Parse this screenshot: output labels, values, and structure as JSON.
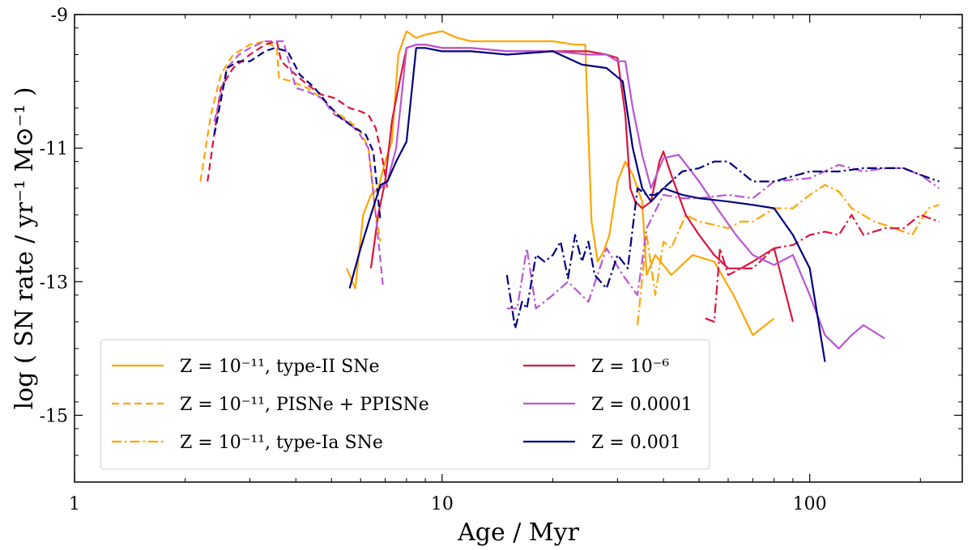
{
  "chart_data": {
    "type": "line",
    "xscale": "log",
    "xlim": [
      1,
      260
    ],
    "ylim": [
      -16,
      -9
    ],
    "xlabel": "Age / Myr",
    "ylabel": "log ( SN rate / yr⁻¹ M⊙⁻¹ )",
    "xticks": [
      {
        "value": 1,
        "label": "1"
      },
      {
        "value": 10,
        "label": "10"
      },
      {
        "value": 100,
        "label": "100"
      }
    ],
    "yticks": [
      {
        "value": -9,
        "label": "-9"
      },
      {
        "value": -11,
        "label": "-11"
      },
      {
        "value": -13,
        "label": "-13"
      },
      {
        "value": -15,
        "label": "-15"
      }
    ],
    "legend": {
      "placement": "lower-left",
      "entries": [
        {
          "label": "Z = 10⁻¹¹, type-II SNe",
          "color": "#FFA500",
          "dash": "solid"
        },
        {
          "label": "Z = 10⁻¹¹, PISNe + PPISNe",
          "color": "#FFA500",
          "dash": "dashed"
        },
        {
          "label": "Z = 10⁻¹¹, type-Ia SNe",
          "color": "#FFA500",
          "dash": "dashdot"
        },
        {
          "label": "Z = 10⁻⁶",
          "color": "#DC143C",
          "dash": "solid"
        },
        {
          "label": "Z = 0.0001",
          "color": "#BA55D3",
          "dash": "solid"
        },
        {
          "label": "Z = 0.001",
          "color": "#000080",
          "dash": "solid"
        }
      ]
    },
    "series": [
      {
        "name": "Z=1e-11 PISNe+PPISNe",
        "color": "#FFA500",
        "dash": "dashed",
        "x": [
          2.2,
          2.35,
          2.5,
          2.7,
          3.0,
          3.3,
          3.55,
          3.6,
          3.9,
          4.3,
          4.7,
          5.1,
          5.6,
          6.0,
          6.3,
          6.6,
          6.8
        ],
        "y": [
          -11.5,
          -10.5,
          -9.9,
          -9.6,
          -9.45,
          -9.4,
          -9.5,
          -9.95,
          -10.0,
          -10.1,
          -10.25,
          -10.45,
          -10.6,
          -10.75,
          -11.0,
          -12.0,
          -12.4
        ]
      },
      {
        "name": "Z=1e-11 type-II",
        "color": "#FFA500",
        "dash": "solid",
        "x": [
          5.5,
          5.8,
          6.1,
          6.4,
          6.7,
          7.0,
          7.3,
          7.6,
          8.0,
          8.5,
          9.0,
          10.0,
          11.0,
          12.0,
          15.0,
          20.0,
          23.0,
          24.5,
          25.5,
          26.5,
          27.5,
          28.5,
          30.0,
          31.5,
          33.0,
          35.0,
          36.0,
          38.0,
          42.0,
          48.0,
          55.0,
          62.0,
          70.0,
          80.0
        ],
        "y": [
          -12.8,
          -13.1,
          -12.0,
          -11.7,
          -11.6,
          -11.2,
          -10.9,
          -9.6,
          -9.25,
          -9.35,
          -9.3,
          -9.25,
          -9.35,
          -9.4,
          -9.4,
          -9.4,
          -9.45,
          -9.45,
          -12.1,
          -12.7,
          -12.55,
          -12.3,
          -11.5,
          -11.2,
          -11.4,
          -11.8,
          -12.9,
          -12.6,
          -12.9,
          -12.6,
          -12.7,
          -13.2,
          -13.8,
          -13.55
        ]
      },
      {
        "name": "Z=1e-11 type-Ia",
        "color": "#FFA500",
        "dash": "dashdot",
        "x": [
          34.0,
          36.0,
          38.0,
          40.0,
          42.0,
          46.0,
          50.0,
          55.0,
          60.0,
          65.0,
          70.0,
          80.0,
          90.0,
          100.0,
          110.0,
          120.0,
          130.0,
          150.0,
          170.0,
          190.0,
          210.0,
          225.0
        ],
        "y": [
          -13.65,
          -12.3,
          -13.2,
          -12.4,
          -12.5,
          -12.0,
          -12.1,
          -12.15,
          -12.2,
          -12.1,
          -12.1,
          -11.9,
          -11.9,
          -11.7,
          -11.55,
          -11.65,
          -11.9,
          -12.1,
          -12.2,
          -12.3,
          -11.9,
          -11.85
        ]
      },
      {
        "name": "Z=1e-6 PISNe",
        "color": "#DC143C",
        "dash": "dashed",
        "x": [
          2.3,
          2.5,
          2.7,
          3.0,
          3.3,
          3.55,
          3.65,
          3.9,
          4.3,
          4.7,
          5.1,
          5.6,
          6.0,
          6.3,
          6.6,
          6.9,
          7.1
        ],
        "y": [
          -11.5,
          -10.1,
          -9.8,
          -9.6,
          -9.45,
          -9.4,
          -9.7,
          -9.85,
          -10.05,
          -10.2,
          -10.25,
          -10.4,
          -10.45,
          -10.5,
          -10.7,
          -11.2,
          -11.6
        ]
      },
      {
        "name": "Z=1e-6 type-II",
        "color": "#DC143C",
        "dash": "solid",
        "x": [
          6.4,
          6.7,
          7.0,
          7.3,
          7.6,
          8.0,
          8.5,
          9.0,
          10.0,
          12.0,
          15.0,
          20.0,
          25.0,
          28.0,
          30.0,
          31.5,
          32.5,
          33.5,
          35.0,
          37.0,
          39.0,
          40.0,
          42.0,
          46.0,
          50.0,
          55.0,
          60.0,
          65.0,
          70.0,
          80.0,
          90.0
        ],
        "y": [
          -12.8,
          -12.0,
          -11.5,
          -10.6,
          -10.1,
          -9.5,
          -9.45,
          -9.45,
          -9.5,
          -9.5,
          -9.55,
          -9.55,
          -9.55,
          -9.6,
          -9.65,
          -10.5,
          -11.6,
          -11.8,
          -11.9,
          -11.8,
          -11.2,
          -11.05,
          -11.4,
          -12.0,
          -12.3,
          -12.6,
          -12.8,
          -12.8,
          -12.7,
          -12.5,
          -13.6
        ]
      },
      {
        "name": "Z=1e-6 type-Ia",
        "color": "#DC143C",
        "dash": "dashdot",
        "x": [
          52.0,
          55.0,
          57.0,
          60.0,
          65.0,
          70.0,
          80.0,
          90.0,
          100.0,
          110.0,
          120.0,
          130.0,
          140.0,
          160.0,
          180.0,
          200.0,
          225.0
        ],
        "y": [
          -13.55,
          -13.6,
          -12.5,
          -12.9,
          -12.8,
          -12.8,
          -12.5,
          -12.45,
          -12.3,
          -12.25,
          -12.3,
          -12.0,
          -12.3,
          -12.2,
          -12.2,
          -12.0,
          -12.1
        ]
      },
      {
        "name": "Z=1e-4 PISNe",
        "color": "#BA55D3",
        "dash": "dashed",
        "x": [
          2.4,
          2.6,
          2.8,
          3.0,
          3.3,
          3.5,
          3.7,
          4.0,
          4.3,
          4.7,
          5.1,
          5.5,
          5.9,
          6.3,
          6.6,
          6.9
        ],
        "y": [
          -10.6,
          -9.8,
          -9.6,
          -9.5,
          -9.4,
          -9.4,
          -9.4,
          -10.1,
          -10.15,
          -10.25,
          -10.5,
          -10.6,
          -10.75,
          -11.0,
          -12.0,
          -13.05
        ]
      },
      {
        "name": "Z=1e-4 type-II",
        "color": "#BA55D3",
        "dash": "solid",
        "x": [
          6.8,
          7.1,
          7.5,
          8.0,
          8.5,
          9.0,
          10.0,
          12.0,
          15.0,
          20.0,
          25.0,
          28.0,
          30.0,
          31.5,
          33.0,
          35.0,
          37.0,
          40.0,
          44.0,
          50.0,
          56.0,
          63.0,
          70.0,
          80.0,
          90.0,
          100.0,
          110.0,
          120.0,
          130.0,
          140.0,
          160.0
        ],
        "y": [
          -11.6,
          -11.5,
          -11.0,
          -9.5,
          -9.45,
          -9.45,
          -9.5,
          -9.5,
          -9.55,
          -9.55,
          -9.6,
          -9.6,
          -9.7,
          -9.7,
          -10.4,
          -11.1,
          -11.6,
          -11.15,
          -11.1,
          -11.5,
          -11.9,
          -12.3,
          -12.6,
          -12.75,
          -12.6,
          -13.2,
          -13.8,
          -14.0,
          -13.8,
          -13.65,
          -13.85
        ]
      },
      {
        "name": "Z=1e-4 type-Ia",
        "color": "#BA55D3",
        "dash": "dashdot",
        "x": [
          15.0,
          16.0,
          17.0,
          18.0,
          20.0,
          22.0,
          25.0,
          28.0,
          31.0,
          34.0,
          36.0,
          40.0,
          45.0,
          50.0,
          60.0,
          70.0,
          80.0,
          100.0,
          120.0,
          140.0,
          160.0,
          180.0,
          200.0,
          225.0
        ],
        "y": [
          -13.4,
          -13.4,
          -12.5,
          -13.4,
          -13.2,
          -13.0,
          -13.3,
          -12.5,
          -12.9,
          -13.2,
          -12.2,
          -11.7,
          -11.75,
          -11.75,
          -11.7,
          -11.75,
          -11.5,
          -11.45,
          -11.25,
          -11.35,
          -11.3,
          -11.3,
          -11.4,
          -11.6
        ]
      },
      {
        "name": "Z=1e-3 PISNe",
        "color": "#000080",
        "dash": "dashed",
        "x": [
          2.4,
          2.6,
          2.8,
          3.0,
          3.3,
          3.5,
          3.8,
          4.1,
          4.5,
          4.9,
          5.3,
          5.8,
          6.2,
          6.5,
          6.8
        ],
        "y": [
          -10.8,
          -9.8,
          -9.7,
          -9.7,
          -9.55,
          -9.5,
          -9.55,
          -9.9,
          -10.1,
          -10.35,
          -10.55,
          -10.7,
          -10.8,
          -11.05,
          -12.1
        ]
      },
      {
        "name": "Z=1e-3 type-II",
        "color": "#000080",
        "dash": "solid",
        "x": [
          5.6,
          6.0,
          6.4,
          6.8,
          7.1,
          7.5,
          8.0,
          8.5,
          9.0,
          10.0,
          12.0,
          15.0,
          20.0,
          24.0,
          28.0,
          31.0,
          33.0,
          35.0,
          37.0,
          40.0,
          45.0,
          50.0,
          60.0,
          70.0,
          80.0,
          90.0,
          100.0,
          110.0
        ],
        "y": [
          -13.1,
          -12.5,
          -12.0,
          -11.55,
          -11.5,
          -11.2,
          -10.9,
          -9.5,
          -9.5,
          -9.55,
          -9.55,
          -9.6,
          -9.55,
          -9.75,
          -9.8,
          -10.0,
          -11.0,
          -11.6,
          -11.8,
          -11.6,
          -11.7,
          -11.75,
          -11.8,
          -11.85,
          -11.9,
          -12.3,
          -12.8,
          -14.2
        ]
      },
      {
        "name": "Z=1e-3 type-Ia",
        "color": "#000080",
        "dash": "dashdot",
        "x": [
          15.0,
          15.8,
          16.5,
          17.0,
          18.0,
          19.0,
          20.0,
          21.0,
          22.0,
          23.0,
          24.0,
          25.0,
          26.0,
          28.0,
          30.0,
          32.0,
          34.0,
          36.0,
          38.0,
          40.0,
          45.0,
          50.0,
          55.0,
          60.0,
          70.0,
          80.0,
          100.0,
          120.0,
          140.0,
          160.0,
          180.0,
          200.0,
          225.0
        ],
        "y": [
          -12.9,
          -13.7,
          -13.3,
          -13.4,
          -12.6,
          -12.7,
          -12.6,
          -12.4,
          -12.95,
          -12.3,
          -12.7,
          -12.4,
          -12.9,
          -13.1,
          -12.6,
          -12.8,
          -11.6,
          -11.7,
          -11.7,
          -11.6,
          -11.35,
          -11.3,
          -11.2,
          -11.2,
          -11.5,
          -11.5,
          -11.35,
          -11.35,
          -11.3,
          -11.3,
          -11.3,
          -11.4,
          -11.5
        ]
      }
    ]
  }
}
